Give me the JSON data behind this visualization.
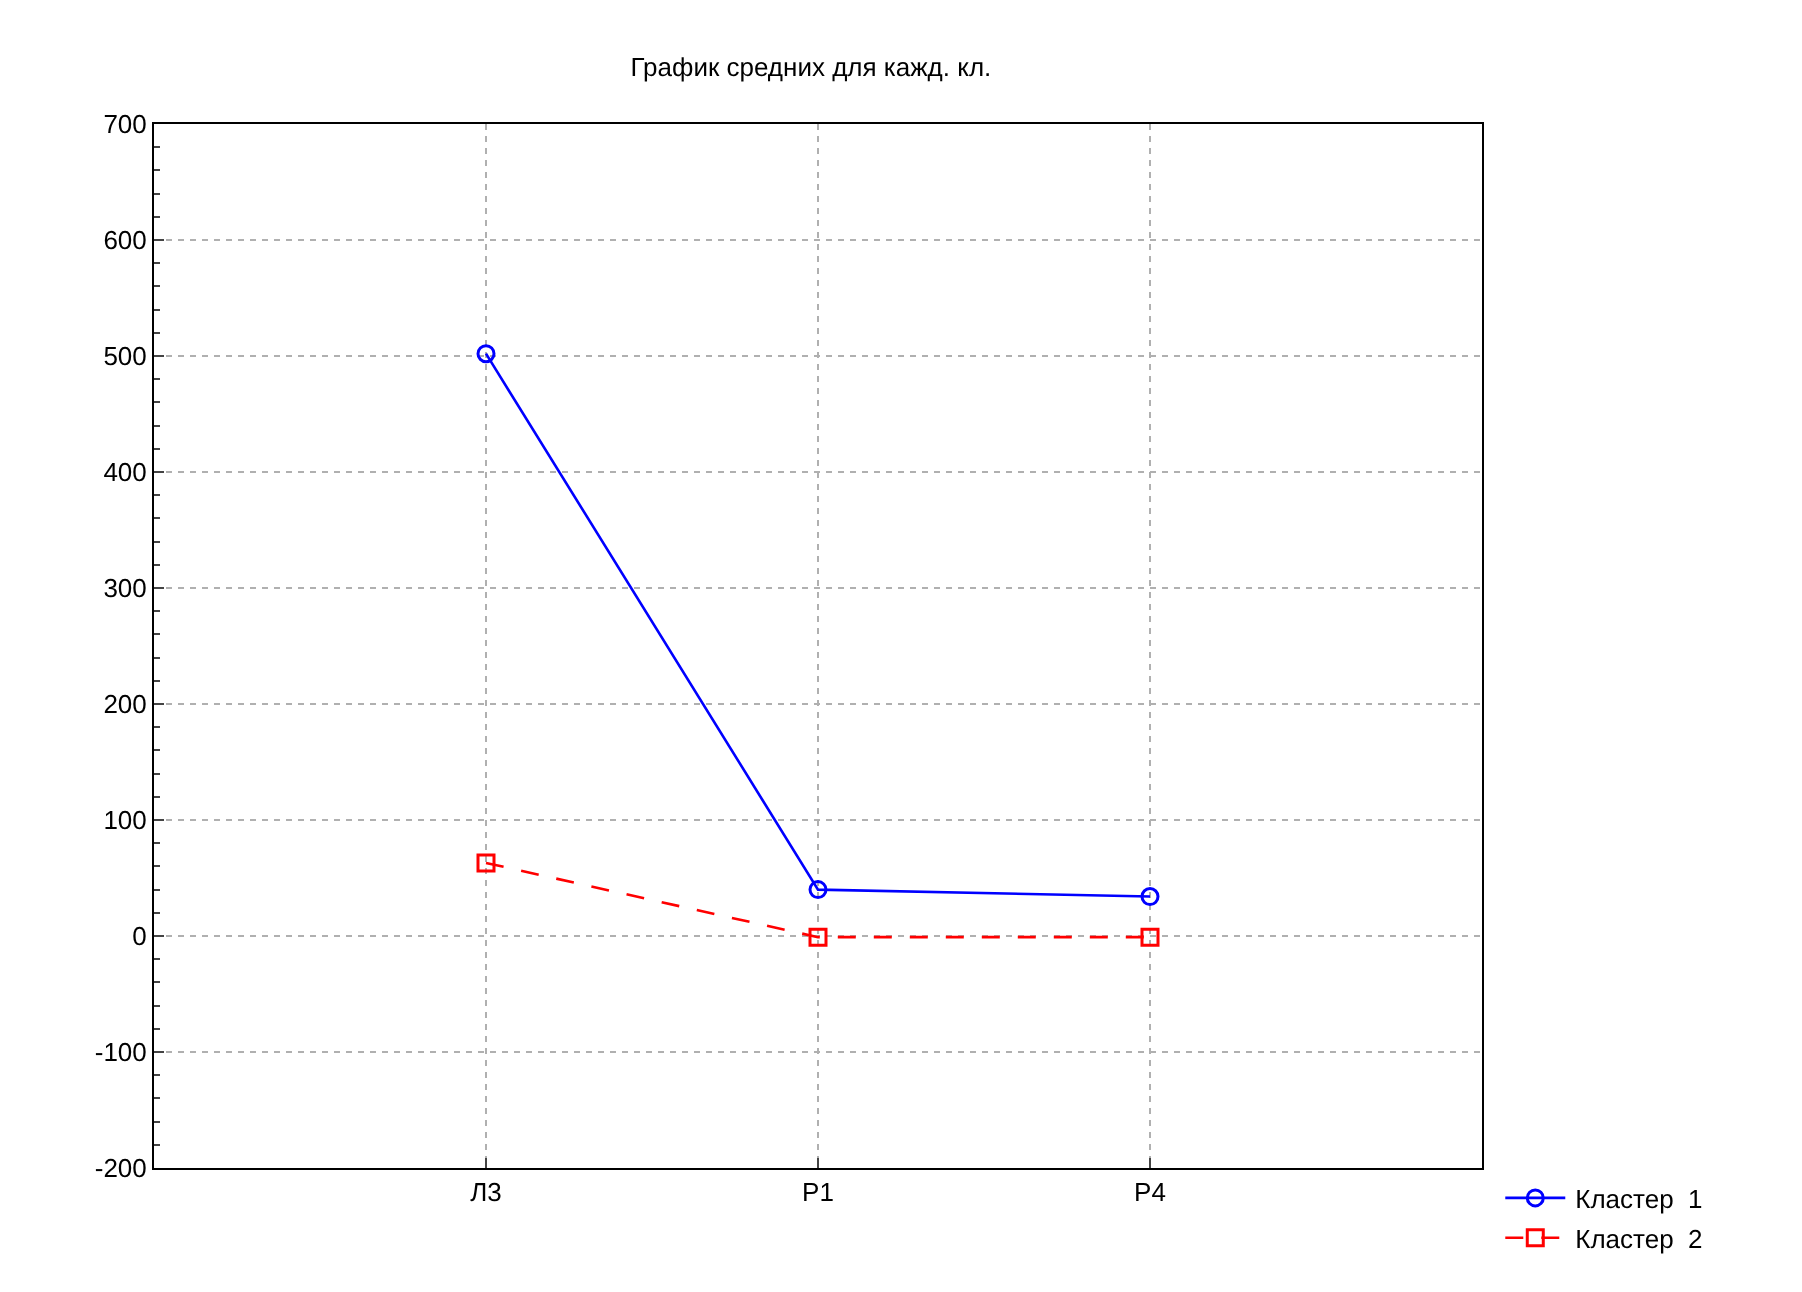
{
  "chart_data": {
    "type": "line",
    "title": "График средних для кажд. кл.",
    "categories": [
      "Л3",
      "Р1",
      "Р4"
    ],
    "series": [
      {
        "name": "Кластер  1",
        "color": "#0000ff",
        "values": [
          502,
          40,
          34
        ],
        "marker": "circle",
        "line_style": "solid"
      },
      {
        "name": "Кластер  2",
        "color": "#ff0000",
        "values": [
          63,
          -1,
          -1
        ],
        "marker": "square",
        "line_style": "dashed"
      }
    ],
    "ylim": [
      -200,
      700
    ],
    "yticks": [
      -200,
      -100,
      0,
      100,
      200,
      300,
      400,
      500,
      600,
      700
    ],
    "grid": true,
    "legend": "bottom right"
  }
}
